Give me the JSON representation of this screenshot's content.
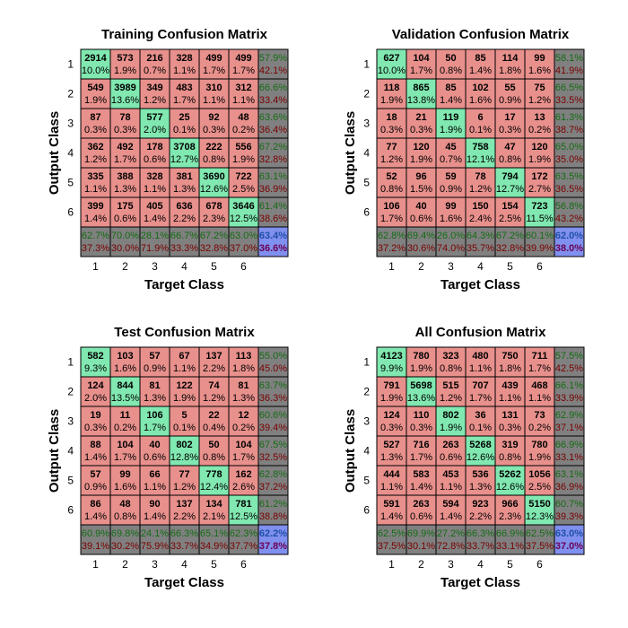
{
  "colors": {
    "correct": "#80e8b0",
    "incorrect": "#e8908c",
    "summary": "#808080",
    "overall": "#8090ee",
    "green_text": "#136c13",
    "red_text": "#7a0000",
    "grid": "#000000"
  },
  "chart_data": [
    {
      "type": "table",
      "title": "Training Confusion Matrix",
      "xlabel": "Target Class",
      "ylabel": "Output Class",
      "x_ticks": [
        "1",
        "2",
        "3",
        "4",
        "5",
        "6"
      ],
      "y_ticks": [
        "1",
        "2",
        "3",
        "4",
        "5",
        "6"
      ],
      "counts": [
        [
          "2914",
          "573",
          "216",
          "328",
          "499",
          "499"
        ],
        [
          "549",
          "3989",
          "349",
          "483",
          "310",
          "312"
        ],
        [
          "87",
          "78",
          "577",
          "25",
          "92",
          "48"
        ],
        [
          "362",
          "492",
          "178",
          "3708",
          "222",
          "556"
        ],
        [
          "335",
          "388",
          "328",
          "381",
          "3690",
          "722"
        ],
        [
          "399",
          "175",
          "405",
          "636",
          "678",
          "3646"
        ]
      ],
      "percents": [
        [
          "10.0%",
          "1.9%",
          "0.7%",
          "1.1%",
          "1.7%",
          "1.7%"
        ],
        [
          "1.9%",
          "13.6%",
          "1.2%",
          "1.7%",
          "1.1%",
          "1.1%"
        ],
        [
          "0.3%",
          "0.3%",
          "2.0%",
          "0.1%",
          "0.3%",
          "0.2%"
        ],
        [
          "1.2%",
          "1.7%",
          "0.6%",
          "12.7%",
          "0.8%",
          "1.9%"
        ],
        [
          "1.1%",
          "1.3%",
          "1.1%",
          "1.3%",
          "12.6%",
          "2.5%"
        ],
        [
          "1.4%",
          "0.6%",
          "1.4%",
          "2.2%",
          "2.3%",
          "12.5%"
        ]
      ],
      "row_summary": [
        [
          "57.9%",
          "42.1%"
        ],
        [
          "66.6%",
          "33.4%"
        ],
        [
          "63.6%",
          "36.4%"
        ],
        [
          "67.2%",
          "32.8%"
        ],
        [
          "63.1%",
          "36.9%"
        ],
        [
          "61.4%",
          "38.6%"
        ]
      ],
      "col_summary": [
        [
          "62.7%",
          "37.3%"
        ],
        [
          "70.0%",
          "30.0%"
        ],
        [
          "28.1%",
          "71.9%"
        ],
        [
          "66.7%",
          "33.3%"
        ],
        [
          "67.2%",
          "32.8%"
        ],
        [
          "63.0%",
          "37.0%"
        ]
      ],
      "overall": [
        "63.4%",
        "36.6%"
      ]
    },
    {
      "type": "table",
      "title": "Validation Confusion Matrix",
      "xlabel": "Target Class",
      "ylabel": "Output Class",
      "x_ticks": [
        "1",
        "2",
        "3",
        "4",
        "5",
        "6"
      ],
      "y_ticks": [
        "1",
        "2",
        "3",
        "4",
        "5",
        "6"
      ],
      "counts": [
        [
          "627",
          "104",
          "50",
          "85",
          "114",
          "99"
        ],
        [
          "118",
          "865",
          "85",
          "102",
          "55",
          "75"
        ],
        [
          "18",
          "21",
          "119",
          "6",
          "17",
          "13"
        ],
        [
          "77",
          "120",
          "45",
          "758",
          "47",
          "120"
        ],
        [
          "52",
          "96",
          "59",
          "78",
          "794",
          "172"
        ],
        [
          "106",
          "40",
          "99",
          "150",
          "154",
          "723"
        ]
      ],
      "percents": [
        [
          "10.0%",
          "1.7%",
          "0.8%",
          "1.4%",
          "1.8%",
          "1.6%"
        ],
        [
          "1.9%",
          "13.8%",
          "1.4%",
          "1.6%",
          "0.9%",
          "1.2%"
        ],
        [
          "0.3%",
          "0.3%",
          "1.9%",
          "0.1%",
          "0.3%",
          "0.2%"
        ],
        [
          "1.2%",
          "1.9%",
          "0.7%",
          "12.1%",
          "0.8%",
          "1.9%"
        ],
        [
          "0.8%",
          "1.5%",
          "0.9%",
          "1.2%",
          "12.7%",
          "2.7%"
        ],
        [
          "1.7%",
          "0.6%",
          "1.6%",
          "2.4%",
          "2.5%",
          "11.5%"
        ]
      ],
      "row_summary": [
        [
          "58.1%",
          "41.9%"
        ],
        [
          "66.5%",
          "33.5%"
        ],
        [
          "61.3%",
          "38.7%"
        ],
        [
          "65.0%",
          "35.0%"
        ],
        [
          "63.5%",
          "36.5%"
        ],
        [
          "56.8%",
          "43.2%"
        ]
      ],
      "col_summary": [
        [
          "62.8%",
          "37.2%"
        ],
        [
          "69.4%",
          "30.6%"
        ],
        [
          "26.0%",
          "74.0%"
        ],
        [
          "64.3%",
          "35.7%"
        ],
        [
          "67.2%",
          "32.8%"
        ],
        [
          "60.1%",
          "39.9%"
        ]
      ],
      "overall": [
        "62.0%",
        "38.0%"
      ]
    },
    {
      "type": "table",
      "title": "Test Confusion Matrix",
      "xlabel": "Target Class",
      "ylabel": "Output Class",
      "x_ticks": [
        "1",
        "2",
        "3",
        "4",
        "5",
        "6"
      ],
      "y_ticks": [
        "1",
        "2",
        "3",
        "4",
        "5",
        "6"
      ],
      "counts": [
        [
          "582",
          "103",
          "57",
          "67",
          "137",
          "113"
        ],
        [
          "124",
          "844",
          "81",
          "122",
          "74",
          "81"
        ],
        [
          "19",
          "11",
          "106",
          "5",
          "22",
          "12"
        ],
        [
          "88",
          "104",
          "40",
          "802",
          "50",
          "104"
        ],
        [
          "57",
          "99",
          "66",
          "77",
          "778",
          "162"
        ],
        [
          "86",
          "48",
          "90",
          "137",
          "134",
          "781"
        ]
      ],
      "percents": [
        [
          "9.3%",
          "1.6%",
          "0.9%",
          "1.1%",
          "2.2%",
          "1.8%"
        ],
        [
          "2.0%",
          "13.5%",
          "1.3%",
          "1.9%",
          "1.2%",
          "1.3%"
        ],
        [
          "0.3%",
          "0.2%",
          "1.7%",
          "0.1%",
          "0.4%",
          "0.2%"
        ],
        [
          "1.4%",
          "1.7%",
          "0.6%",
          "12.8%",
          "0.8%",
          "1.7%"
        ],
        [
          "0.9%",
          "1.6%",
          "1.1%",
          "1.2%",
          "12.4%",
          "2.6%"
        ],
        [
          "1.4%",
          "0.8%",
          "1.4%",
          "2.2%",
          "2.1%",
          "12.5%"
        ]
      ],
      "row_summary": [
        [
          "55.0%",
          "45.0%"
        ],
        [
          "63.7%",
          "36.3%"
        ],
        [
          "60.6%",
          "39.4%"
        ],
        [
          "67.5%",
          "32.5%"
        ],
        [
          "62.8%",
          "37.2%"
        ],
        [
          "61.2%",
          "38.8%"
        ]
      ],
      "col_summary": [
        [
          "60.9%",
          "39.1%"
        ],
        [
          "69.8%",
          "30.2%"
        ],
        [
          "24.1%",
          "75.9%"
        ],
        [
          "66.3%",
          "33.7%"
        ],
        [
          "65.1%",
          "34.9%"
        ],
        [
          "62.3%",
          "37.7%"
        ]
      ],
      "overall": [
        "62.2%",
        "37.8%"
      ]
    },
    {
      "type": "table",
      "title": "All Confusion Matrix",
      "xlabel": "Target Class",
      "ylabel": "Output Class",
      "x_ticks": [
        "1",
        "2",
        "3",
        "4",
        "5",
        "6"
      ],
      "y_ticks": [
        "1",
        "2",
        "3",
        "4",
        "5",
        "6"
      ],
      "counts": [
        [
          "4123",
          "780",
          "323",
          "480",
          "750",
          "711"
        ],
        [
          "791",
          "5698",
          "515",
          "707",
          "439",
          "468"
        ],
        [
          "124",
          "110",
          "802",
          "36",
          "131",
          "73"
        ],
        [
          "527",
          "716",
          "263",
          "5268",
          "319",
          "780"
        ],
        [
          "444",
          "583",
          "453",
          "536",
          "5262",
          "1056"
        ],
        [
          "591",
          "263",
          "594",
          "923",
          "966",
          "5150"
        ]
      ],
      "percents": [
        [
          "9.9%",
          "1.9%",
          "0.8%",
          "1.1%",
          "1.8%",
          "1.7%"
        ],
        [
          "1.9%",
          "13.6%",
          "1.2%",
          "1.7%",
          "1.1%",
          "1.1%"
        ],
        [
          "0.3%",
          "0.3%",
          "1.9%",
          "0.1%",
          "0.3%",
          "0.2%"
        ],
        [
          "1.3%",
          "1.7%",
          "0.6%",
          "12.6%",
          "0.8%",
          "1.9%"
        ],
        [
          "1.1%",
          "1.4%",
          "1.1%",
          "1.3%",
          "12.6%",
          "2.5%"
        ],
        [
          "1.4%",
          "0.6%",
          "1.4%",
          "2.2%",
          "2.3%",
          "12.3%"
        ]
      ],
      "row_summary": [
        [
          "57.5%",
          "42.5%"
        ],
        [
          "66.1%",
          "33.9%"
        ],
        [
          "62.9%",
          "37.1%"
        ],
        [
          "66.9%",
          "33.1%"
        ],
        [
          "63.1%",
          "36.9%"
        ],
        [
          "60.7%",
          "39.3%"
        ]
      ],
      "col_summary": [
        [
          "62.5%",
          "37.5%"
        ],
        [
          "69.9%",
          "30.1%"
        ],
        [
          "27.2%",
          "72.8%"
        ],
        [
          "66.3%",
          "33.7%"
        ],
        [
          "66.9%",
          "33.1%"
        ],
        [
          "62.5%",
          "37.5%"
        ]
      ],
      "overall": [
        "63.0%",
        "37.0%"
      ]
    }
  ]
}
